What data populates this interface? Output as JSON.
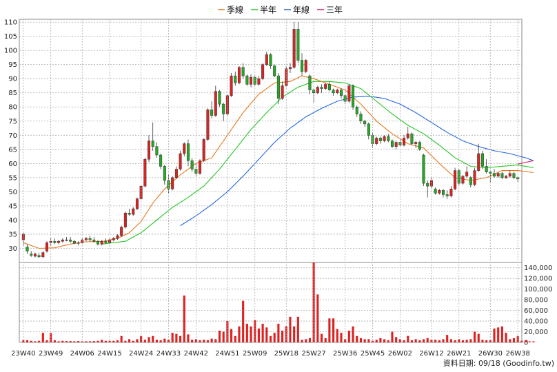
{
  "chart_data": [
    {
      "type": "candlestick",
      "legend": {
        "placement": "top",
        "items": [
          {
            "label": "季線",
            "color": "#e8781e"
          },
          {
            "label": "半年",
            "color": "#22c422"
          },
          {
            "label": "年線",
            "color": "#2266dd"
          },
          {
            "label": "三年",
            "color": "#e0206a"
          }
        ]
      },
      "ylim": [
        25,
        111
      ],
      "y_ticks": [
        30,
        35,
        40,
        45,
        50,
        55,
        60,
        65,
        70,
        75,
        80,
        85,
        90,
        95,
        100,
        105,
        110
      ],
      "x_ticks": [
        "23W40",
        "23W49",
        "24W06",
        "24W15",
        "24W24",
        "24W33",
        "24W42",
        "24W51",
        "25W09",
        "25W18",
        "25W27",
        "25W36",
        "25W45",
        "26W02",
        "26W12",
        "26W21",
        "26W30",
        "26W38"
      ],
      "grid": true,
      "up_color": "#dd2222",
      "down_color": "#22aa22",
      "candles_ohlc": [
        [
          33.0,
          35.5,
          30.8,
          35.0
        ],
        [
          30.5,
          31.5,
          28.0,
          29.0
        ],
        [
          28.0,
          29.0,
          27.0,
          27.5
        ],
        [
          27.2,
          28.5,
          26.8,
          28.0
        ],
        [
          27.5,
          28.5,
          26.5,
          27.0
        ],
        [
          27.0,
          29.0,
          26.5,
          28.5
        ],
        [
          29.0,
          32.5,
          28.5,
          32.0
        ],
        [
          32.0,
          33.5,
          31.0,
          32.5
        ],
        [
          32.5,
          33.5,
          31.5,
          32.0
        ],
        [
          32.0,
          33.0,
          31.5,
          32.5
        ],
        [
          32.5,
          33.5,
          32.0,
          33.0
        ],
        [
          33.0,
          34.0,
          32.5,
          33.0
        ],
        [
          33.0,
          34.0,
          32.0,
          32.5
        ],
        [
          32.5,
          33.0,
          31.5,
          31.8
        ],
        [
          31.8,
          32.5,
          31.0,
          32.0
        ],
        [
          32.0,
          33.5,
          31.5,
          33.0
        ],
        [
          33.0,
          34.0,
          32.5,
          33.5
        ],
        [
          33.5,
          34.5,
          32.5,
          33.0
        ],
        [
          33.0,
          34.0,
          32.0,
          32.5
        ],
        [
          32.5,
          33.0,
          31.0,
          31.5
        ],
        [
          31.5,
          33.0,
          31.0,
          32.5
        ],
        [
          32.5,
          33.5,
          31.5,
          32.0
        ],
        [
          32.0,
          33.5,
          31.5,
          33.0
        ],
        [
          33.0,
          34.0,
          32.5,
          33.5
        ],
        [
          33.5,
          35.0,
          33.0,
          34.5
        ],
        [
          34.5,
          38.0,
          34.0,
          37.5
        ],
        [
          37.5,
          43.0,
          37.0,
          42.5
        ],
        [
          42.5,
          44.0,
          41.5,
          42.0
        ],
        [
          42.0,
          44.5,
          41.5,
          44.0
        ],
        [
          44.0,
          48.0,
          43.5,
          47.5
        ],
        [
          47.5,
          52.5,
          47.0,
          52.0
        ],
        [
          52.0,
          62.0,
          51.5,
          61.5
        ],
        [
          61.5,
          70.0,
          60.5,
          68.0
        ],
        [
          68.0,
          74.5,
          64.5,
          66.0
        ],
        [
          66.0,
          67.5,
          62.0,
          63.0
        ],
        [
          63.0,
          63.5,
          58.0,
          59.0
        ],
        [
          59.0,
          59.5,
          52.5,
          54.0
        ],
        [
          54.0,
          56.0,
          49.5,
          51.0
        ],
        [
          51.0,
          55.5,
          50.5,
          55.0
        ],
        [
          55.0,
          59.0,
          54.5,
          58.0
        ],
        [
          58.0,
          64.5,
          57.5,
          63.5
        ],
        [
          63.5,
          67.5,
          62.5,
          67.0
        ],
        [
          67.0,
          68.5,
          59.0,
          61.0
        ],
        [
          61.0,
          62.0,
          57.0,
          58.0
        ],
        [
          58.0,
          60.0,
          55.5,
          56.5
        ],
        [
          56.5,
          61.5,
          56.0,
          61.0
        ],
        [
          61.0,
          69.0,
          60.5,
          68.5
        ],
        [
          68.5,
          79.5,
          68.0,
          79.0
        ],
        [
          79.0,
          82.0,
          76.0,
          77.0
        ],
        [
          77.0,
          87.5,
          76.5,
          85.5
        ],
        [
          85.5,
          86.0,
          80.0,
          81.0
        ],
        [
          81.0,
          81.5,
          75.0,
          77.5
        ],
        [
          77.5,
          84.5,
          77.0,
          84.0
        ],
        [
          84.0,
          92.0,
          83.5,
          91.0
        ],
        [
          91.0,
          92.5,
          87.5,
          88.5
        ],
        [
          88.5,
          94.5,
          88.0,
          94.0
        ],
        [
          94.0,
          95.5,
          90.0,
          91.0
        ],
        [
          91.0,
          91.5,
          87.5,
          88.0
        ],
        [
          88.0,
          91.5,
          87.0,
          90.5
        ],
        [
          90.5,
          91.0,
          87.5,
          88.0
        ],
        [
          88.0,
          91.0,
          87.5,
          90.0
        ],
        [
          90.0,
          95.5,
          89.5,
          95.0
        ],
        [
          95.0,
          99.5,
          94.5,
          98.5
        ],
        [
          98.5,
          99.0,
          93.5,
          94.5
        ],
        [
          94.5,
          95.0,
          90.5,
          91.0
        ],
        [
          91.0,
          92.0,
          81.0,
          83.0
        ],
        [
          83.0,
          89.0,
          82.5,
          87.5
        ],
        [
          87.5,
          94.5,
          87.0,
          93.5
        ],
        [
          93.5,
          95.5,
          92.0,
          94.0
        ],
        [
          94.0,
          110.0,
          93.5,
          107.5
        ],
        [
          107.5,
          110.0,
          95.5,
          96.5
        ],
        [
          96.5,
          99.0,
          91.0,
          92.5
        ],
        [
          92.5,
          97.0,
          92.0,
          96.5
        ],
        [
          91.0,
          91.5,
          84.5,
          86.0
        ],
        [
          86.0,
          86.5,
          81.5,
          85.0
        ],
        [
          85.0,
          87.5,
          84.5,
          87.0
        ],
        [
          87.0,
          88.0,
          85.0,
          86.5
        ],
        [
          86.5,
          88.5,
          86.0,
          88.0
        ],
        [
          88.0,
          89.0,
          85.5,
          86.0
        ],
        [
          86.0,
          86.5,
          84.0,
          85.0
        ],
        [
          85.0,
          86.5,
          84.5,
          86.0
        ],
        [
          86.0,
          86.5,
          83.0,
          84.0
        ],
        [
          84.0,
          84.5,
          81.0,
          82.0
        ],
        [
          82.0,
          88.0,
          81.5,
          87.5
        ],
        [
          87.5,
          88.0,
          79.0,
          80.0
        ],
        [
          80.0,
          80.5,
          76.5,
          77.5
        ],
        [
          77.5,
          78.5,
          74.0,
          75.0
        ],
        [
          75.0,
          75.5,
          73.0,
          74.0
        ],
        [
          74.0,
          74.5,
          68.5,
          70.0
        ],
        [
          70.0,
          71.0,
          65.5,
          67.0
        ],
        [
          67.0,
          69.5,
          66.5,
          69.0
        ],
        [
          69.0,
          69.5,
          67.0,
          68.0
        ],
        [
          68.0,
          70.0,
          67.5,
          69.5
        ],
        [
          69.5,
          70.5,
          67.5,
          68.0
        ],
        [
          68.0,
          68.5,
          65.5,
          66.0
        ],
        [
          66.0,
          68.0,
          65.0,
          67.5
        ],
        [
          67.5,
          68.5,
          66.0,
          66.5
        ],
        [
          66.5,
          70.0,
          66.0,
          69.0
        ],
        [
          69.0,
          73.0,
          68.5,
          70.5
        ],
        [
          70.5,
          71.0,
          66.5,
          67.0
        ],
        [
          67.0,
          68.0,
          65.5,
          67.5
        ],
        [
          67.5,
          68.0,
          64.5,
          65.0
        ],
        [
          63.0,
          63.5,
          52.0,
          53.0
        ],
        [
          53.0,
          54.0,
          48.0,
          52.0
        ],
        [
          52.0,
          55.0,
          51.0,
          54.0
        ],
        [
          51.0,
          51.5,
          49.0,
          49.5
        ],
        [
          49.5,
          51.0,
          49.0,
          50.5
        ],
        [
          50.5,
          51.0,
          48.0,
          49.0
        ],
        [
          49.0,
          50.5,
          47.5,
          48.5
        ],
        [
          48.5,
          52.0,
          48.0,
          51.0
        ],
        [
          51.0,
          58.5,
          50.5,
          57.5
        ],
        [
          57.5,
          58.0,
          52.0,
          53.0
        ],
        [
          53.0,
          56.0,
          52.5,
          55.5
        ],
        [
          55.5,
          59.0,
          55.0,
          57.0
        ],
        [
          55.0,
          55.5,
          51.5,
          52.5
        ],
        [
          52.5,
          58.5,
          52.0,
          57.5
        ],
        [
          57.5,
          67.0,
          57.0,
          63.5
        ],
        [
          63.5,
          64.5,
          58.0,
          59.0
        ],
        [
          59.0,
          61.5,
          56.5,
          57.0
        ],
        [
          57.0,
          57.5,
          53.5,
          56.5
        ],
        [
          56.5,
          58.0,
          55.0,
          55.5
        ],
        [
          55.5,
          57.0,
          55.0,
          56.5
        ],
        [
          56.5,
          57.0,
          54.5,
          55.0
        ],
        [
          55.0,
          56.0,
          54.5,
          55.5
        ],
        [
          55.5,
          57.5,
          55.0,
          56.5
        ],
        [
          56.5,
          57.0,
          54.5,
          55.0
        ],
        [
          55.0,
          55.5,
          53.5,
          54.5
        ]
      ],
      "ma_quarter": [
        [
          0,
          32.0
        ],
        [
          4,
          30.0
        ],
        [
          8,
          30.2
        ],
        [
          12,
          31.5
        ],
        [
          16,
          32.3
        ],
        [
          20,
          32.4
        ],
        [
          24,
          33.5
        ],
        [
          27,
          35.5
        ],
        [
          30,
          39.5
        ],
        [
          33,
          46.0
        ],
        [
          36,
          51.0
        ],
        [
          40,
          56.0
        ],
        [
          44,
          60.0
        ],
        [
          48,
          62.0
        ],
        [
          52,
          70.0
        ],
        [
          56,
          78.0
        ],
        [
          60,
          84.5
        ],
        [
          64,
          88.5
        ],
        [
          68,
          89.0
        ],
        [
          71,
          91.0
        ],
        [
          74,
          90.0
        ],
        [
          78,
          88.0
        ],
        [
          82,
          86.0
        ],
        [
          86,
          81.0
        ],
        [
          90,
          75.0
        ],
        [
          94,
          70.5
        ],
        [
          98,
          67.0
        ],
        [
          102,
          65.5
        ],
        [
          106,
          60.0
        ],
        [
          110,
          55.0
        ],
        [
          114,
          54.0
        ],
        [
          118,
          55.0
        ],
        [
          122,
          57.5
        ],
        [
          126,
          57.5
        ],
        [
          130,
          56.8
        ]
      ],
      "ma_halfyear": [
        [
          20,
          31.5
        ],
        [
          26,
          32.5
        ],
        [
          30,
          35.5
        ],
        [
          34,
          40.0
        ],
        [
          38,
          44.5
        ],
        [
          42,
          48.0
        ],
        [
          46,
          52.0
        ],
        [
          50,
          58.0
        ],
        [
          54,
          65.0
        ],
        [
          58,
          72.0
        ],
        [
          62,
          78.0
        ],
        [
          66,
          83.5
        ],
        [
          70,
          87.0
        ],
        [
          74,
          89.0
        ],
        [
          78,
          89.0
        ],
        [
          82,
          88.5
        ],
        [
          86,
          86.5
        ],
        [
          90,
          82.0
        ],
        [
          94,
          77.5
        ],
        [
          98,
          73.5
        ],
        [
          102,
          70.5
        ],
        [
          106,
          66.5
        ],
        [
          110,
          62.0
        ],
        [
          114,
          59.0
        ],
        [
          118,
          58.5
        ],
        [
          122,
          59.0
        ],
        [
          126,
          59.5
        ],
        [
          130,
          58.5
        ]
      ],
      "ma_year": [
        [
          40,
          38.0
        ],
        [
          44,
          41.5
        ],
        [
          48,
          45.5
        ],
        [
          52,
          50.0
        ],
        [
          56,
          55.5
        ],
        [
          60,
          61.5
        ],
        [
          64,
          67.5
        ],
        [
          68,
          72.5
        ],
        [
          72,
          76.5
        ],
        [
          76,
          79.5
        ],
        [
          80,
          82.0
        ],
        [
          84,
          83.5
        ],
        [
          88,
          83.8
        ],
        [
          92,
          83.0
        ],
        [
          96,
          81.0
        ],
        [
          100,
          78.0
        ],
        [
          104,
          74.5
        ],
        [
          108,
          71.0
        ],
        [
          112,
          68.0
        ],
        [
          116,
          66.0
        ],
        [
          120,
          64.5
        ],
        [
          124,
          63.5
        ],
        [
          128,
          62.0
        ],
        [
          130,
          61.0
        ]
      ],
      "ma_3year": [
        [
          126,
          59.8
        ],
        [
          130,
          61.0
        ]
      ]
    },
    {
      "type": "bar",
      "series_name": "volume",
      "color": "#dd2222",
      "ylim": [
        0,
        150000
      ],
      "y_ticks": [
        0,
        20000,
        40000,
        60000,
        80000,
        100000,
        120000,
        140000
      ],
      "y_tick_labels": [
        "0",
        "20,000",
        "40,000",
        "60,000",
        "80,000",
        "100,000",
        "120,000",
        "140,000"
      ],
      "values": [
        4000,
        4000,
        3000,
        2000,
        3000,
        18000,
        4000,
        18000,
        4000,
        2000,
        3000,
        2500,
        2500,
        2000,
        2500,
        2000,
        2000,
        2000,
        2500,
        3000,
        5000,
        3000,
        3000,
        3000,
        4000,
        12000,
        3000,
        6000,
        3000,
        6000,
        12000,
        5000,
        10000,
        12000,
        5000,
        4000,
        7000,
        5000,
        18000,
        16000,
        12000,
        88000,
        15000,
        5000,
        6000,
        4000,
        5000,
        4000,
        7000,
        6000,
        22000,
        20000,
        40000,
        25000,
        12000,
        30000,
        78000,
        35000,
        30000,
        42000,
        26000,
        35000,
        28000,
        12000,
        18000,
        35000,
        22000,
        30000,
        48000,
        30000,
        48000,
        5000,
        6000,
        8000,
        150000,
        90000,
        16000,
        8000,
        45000,
        45000,
        25000,
        18000,
        6000,
        22000,
        30000,
        12000,
        8000,
        6000,
        6000,
        3000,
        5000,
        8000,
        6000,
        4000,
        20000,
        10000,
        6000,
        4000,
        12000,
        4000,
        6000,
        4000,
        6000,
        8000,
        5000,
        5000,
        4000,
        6000,
        14000,
        6000,
        4000,
        6000,
        4000,
        5000,
        6000,
        20000,
        16000,
        5000,
        4000,
        4000,
        26000,
        28000,
        30000,
        18000,
        6000,
        8000,
        12000,
        3000,
        4000,
        2000,
        2000
      ]
    }
  ],
  "footer": {
    "source_text": "資料日期: 09/18 (Goodinfo.tw)"
  }
}
